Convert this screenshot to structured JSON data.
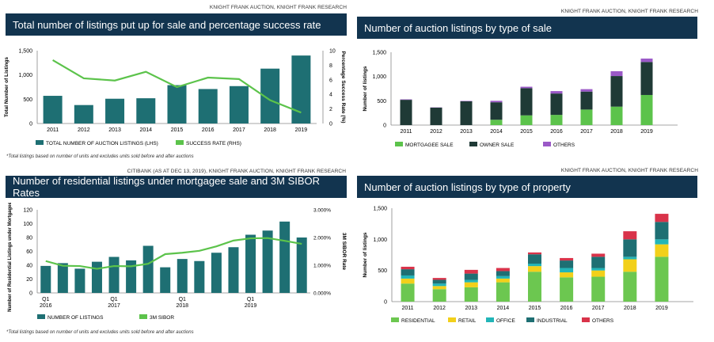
{
  "panels": [
    {
      "source": "KNIGHT FRANK AUCTION, KNIGHT FRANK RESEARCH",
      "title": "Total number of listings put up for sale and percentage success rate",
      "footnote": "*Total listings based on number of units and excludes units sold before and after auctions"
    },
    {
      "source": "KNIGHT FRANK AUCTION, KNIGHT FRANK RESEARCH",
      "title": "Number of auction listings by type of sale",
      "footnote": ""
    },
    {
      "source": "CITIBANK (AS AT DEC 13, 2019), KNIGHT FRANK AUCTION, KNIGHT FRANK RESEARCH",
      "title": "Number of residential listings under mortgagee sale and 3M SIBOR Rates",
      "footnote": "*Total listings based on number of units and excludes units sold before and after auctions"
    },
    {
      "source": "KNIGHT FRANK AUCTION, KNIGHT FRANK RESEARCH",
      "title": "Number of auction listings by type of property",
      "footnote": ""
    }
  ],
  "colors": {
    "navy": "#12344f",
    "teal": "#1e6f73",
    "green": "#5cc34b",
    "dark": "#1f3a36",
    "purple": "#9b59c7",
    "yellow": "#f2d01a",
    "cyan": "#22b5b8",
    "red": "#d9334a",
    "res_green": "#6cc750"
  },
  "chart_data": [
    {
      "type": "bar",
      "categories": [
        "2011",
        "2012",
        "2013",
        "2014",
        "2015",
        "2016",
        "2017",
        "2018",
        "2019"
      ],
      "series": [
        {
          "name": "TOTAL NUMBER OF AUCTION LISTINGS (LHS)",
          "values": [
            570,
            380,
            510,
            520,
            790,
            710,
            770,
            1130,
            1400
          ],
          "kind": "bar",
          "axis": "left"
        },
        {
          "name": "SUCCESS RATE (RHS)",
          "values": [
            8.7,
            6.2,
            5.9,
            7.1,
            5.0,
            6.3,
            6.1,
            3.2,
            1.5
          ],
          "kind": "line",
          "axis": "right"
        }
      ],
      "ylabel": "Total Number of Listings",
      "y2label": "Percentage Success Rate (%)",
      "ylim": [
        0,
        1500
      ],
      "y2lim": [
        0,
        10
      ],
      "yticks": [
        "0",
        "500",
        "1,000",
        "1,500"
      ],
      "y2ticks": [
        "0",
        "2",
        "4",
        "6",
        "8",
        "10"
      ],
      "legend": "bottom"
    },
    {
      "type": "bar",
      "stacked": true,
      "categories": [
        "2011",
        "2012",
        "2013",
        "2014",
        "2015",
        "2016",
        "2017",
        "2018",
        "2019"
      ],
      "series": [
        {
          "name": "MORTGAGEE SALE",
          "values": [
            0,
            0,
            0,
            110,
            200,
            210,
            320,
            380,
            620
          ]
        },
        {
          "name": "OWNER SALE",
          "values": [
            520,
            360,
            490,
            360,
            560,
            440,
            370,
            630,
            680
          ]
        },
        {
          "name": "OTHERS",
          "values": [
            10,
            5,
            8,
            30,
            30,
            50,
            50,
            100,
            70
          ]
        }
      ],
      "ylabel": "Number of listings",
      "ylim": [
        0,
        1500
      ],
      "yticks": [
        "0",
        "500",
        "1,000",
        "1,500"
      ],
      "legend": "bottom"
    },
    {
      "type": "bar",
      "categories": [
        "Q1\n2016",
        "",
        "",
        "",
        "Q1\n2017",
        "",
        "",
        "",
        "Q1\n2018",
        "",
        "",
        "",
        "Q1\n2019",
        "",
        "",
        ""
      ],
      "xtick_labels": [
        "Q1",
        "2016",
        "Q1",
        "2017",
        "Q1",
        "2018",
        "Q1",
        "2019"
      ],
      "series": [
        {
          "name": "NUMBER OF LISTINGS",
          "values": [
            39,
            43,
            35,
            45,
            52,
            47,
            68,
            37,
            49,
            46,
            58,
            66,
            84,
            90,
            103,
            80
          ],
          "kind": "bar",
          "axis": "left"
        },
        {
          "name": "3M SIBOR",
          "values": [
            1.15,
            0.98,
            0.97,
            0.87,
            0.97,
            0.96,
            1.05,
            1.4,
            1.45,
            1.52,
            1.68,
            1.89,
            1.97,
            1.98,
            1.88,
            1.77
          ],
          "kind": "line",
          "axis": "right"
        }
      ],
      "ylabel": "Number of Residential Listings under Mortgagee Sale",
      "y2label": "3M SIBOR Rate",
      "ylim": [
        0,
        120
      ],
      "y2lim": [
        0,
        3
      ],
      "yticks": [
        "0",
        "20",
        "40",
        "60",
        "80",
        "100",
        "120"
      ],
      "y2ticks": [
        "0.000%",
        "1.000%",
        "2.000%",
        "3.000%"
      ],
      "legend": "bottom"
    },
    {
      "type": "bar",
      "stacked": true,
      "categories": [
        "2011",
        "2012",
        "2013",
        "2014",
        "2015",
        "2016",
        "2017",
        "2018",
        "2019"
      ],
      "series": [
        {
          "name": "RESIDENTIAL",
          "values": [
            290,
            200,
            230,
            310,
            480,
            390,
            400,
            480,
            720
          ]
        },
        {
          "name": "RETAIL",
          "values": [
            80,
            50,
            80,
            60,
            90,
            80,
            100,
            200,
            200
          ]
        },
        {
          "name": "OFFICE",
          "values": [
            50,
            40,
            40,
            40,
            40,
            70,
            40,
            40,
            80
          ]
        },
        {
          "name": "INDUSTRIAL",
          "values": [
            100,
            60,
            100,
            80,
            150,
            120,
            180,
            280,
            280
          ]
        },
        {
          "name": "OTHERS",
          "values": [
            40,
            30,
            60,
            50,
            30,
            40,
            50,
            130,
            130
          ]
        }
      ],
      "ylabel": "Number of listings",
      "ylim": [
        0,
        1500
      ],
      "yticks": [
        "0",
        "500",
        "1,000",
        "1,500"
      ],
      "legend": "bottom"
    }
  ]
}
